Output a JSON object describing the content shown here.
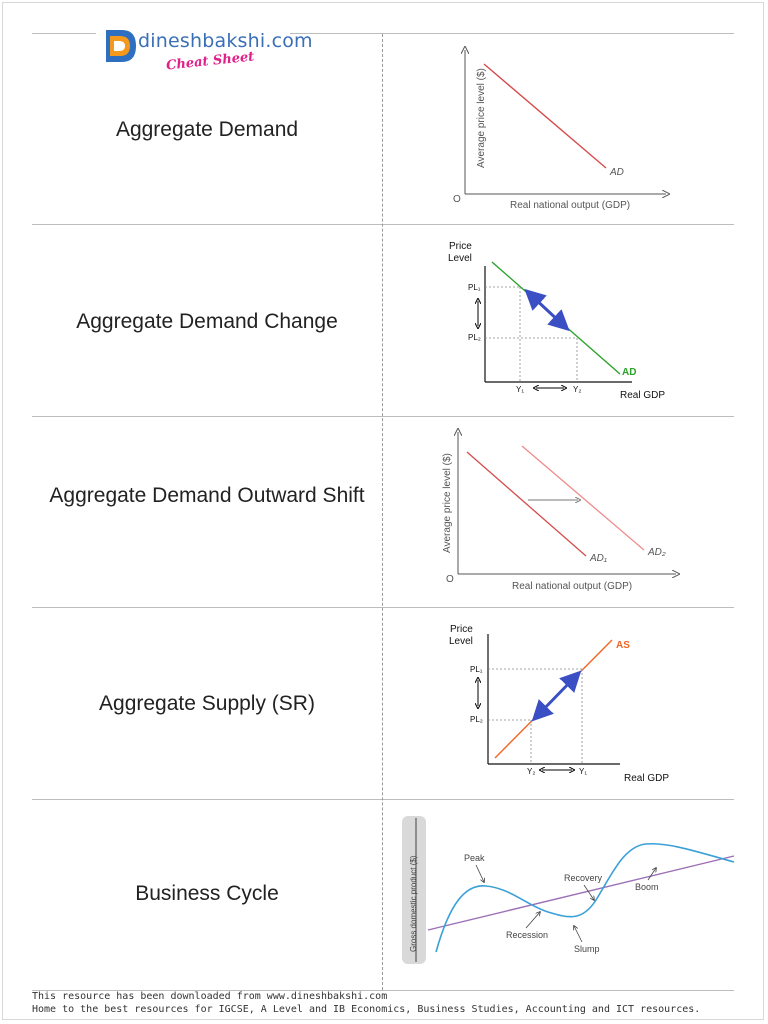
{
  "brand": {
    "name": "dineshbakshi.com",
    "tagline": "Cheat Sheet"
  },
  "cards": [
    {
      "term": "Aggregate Demand"
    },
    {
      "term": "Aggregate Demand Change"
    },
    {
      "term": "Aggregate Demand Outward Shift"
    },
    {
      "term": "Aggregate Supply (SR)"
    },
    {
      "term": "Business Cycle"
    }
  ],
  "figures": {
    "ad": {
      "ylabel": "Average price level ($)",
      "xlabel": "Real national output (GDP)",
      "curve": "AD",
      "origin": "O"
    },
    "ad_change": {
      "ylabel_1": "Price",
      "ylabel_2": "Level",
      "xlabel": "Real GDP",
      "curve": "AD",
      "pl1": "PL₁",
      "pl2": "PL₂",
      "y1": "Y₁",
      "y2": "Y₂"
    },
    "ad_shift": {
      "ylabel": "Average price level ($)",
      "xlabel": "Real national output (GDP)",
      "curve1": "AD₁",
      "curve2": "AD₂",
      "origin": "O"
    },
    "as": {
      "ylabel_1": "Price",
      "ylabel_2": "Level",
      "xlabel": "Real GDP",
      "curve": "AS",
      "pl1": "PL₁",
      "pl2": "PL₂",
      "y1": "Y₁",
      "y2": "Y₂"
    },
    "cycle": {
      "ylabel": "Gross domestic product ($)",
      "peak": "Peak",
      "recession": "Recession",
      "recovery": "Recovery",
      "boom": "Boom",
      "slump": "Slump"
    }
  },
  "colors": {
    "ad_red": "#d64c4c",
    "ad2_pink": "#f08a8a",
    "ad_green": "#2aa32a",
    "as_orange": "#f26522",
    "arrow_blue": "#3b4fc4",
    "cycle_blue": "#3aa0d8",
    "trend_purple": "#9a6fb5"
  },
  "footer": {
    "line1": "This resource has been downloaded from www.dineshbakshi.com",
    "line2": "Home to the best resources for IGCSE, A Level and IB Economics, Business Studies, Accounting and ICT resources."
  }
}
